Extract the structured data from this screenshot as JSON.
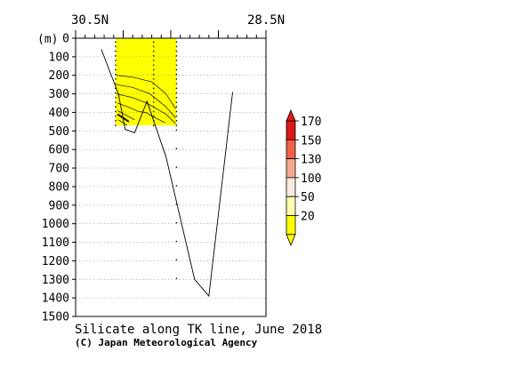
{
  "chart_data": {
    "type": "contour-section",
    "title": "Silicate along TK line, June 2018",
    "credit": "(C) Japan Meteorological Agency",
    "x_axis": {
      "left_label": "30.5N",
      "right_label": "28.5N",
      "lat_range": [
        30.5,
        28.5
      ],
      "station_lats": [
        30.08,
        29.68,
        29.44
      ]
    },
    "y_axis": {
      "unit_label": "(m)",
      "ticks": [
        0,
        100,
        200,
        300,
        400,
        500,
        600,
        700,
        800,
        900,
        1000,
        1100,
        1200,
        1300,
        1400,
        1500
      ],
      "ylim": [
        0,
        1500
      ],
      "grid": true
    },
    "bottom_profile": [
      {
        "lat": 30.23,
        "depth": 60
      },
      {
        "lat": 30.05,
        "depth": 300
      },
      {
        "lat": 29.98,
        "depth": 490
      },
      {
        "lat": 29.88,
        "depth": 510
      },
      {
        "lat": 29.75,
        "depth": 340
      },
      {
        "lat": 29.55,
        "depth": 640
      },
      {
        "lat": 29.25,
        "depth": 1300
      },
      {
        "lat": 29.1,
        "depth": 1390
      },
      {
        "lat": 28.85,
        "depth": 290
      }
    ],
    "filled_region": {
      "lat_range": [
        30.08,
        29.44
      ],
      "depth_max": 470,
      "color": "#ffff00"
    },
    "contours": [
      {
        "points": [
          [
            30.07,
            200
          ],
          [
            29.9,
            210
          ],
          [
            29.7,
            235
          ],
          [
            29.55,
            300
          ],
          [
            29.45,
            380
          ]
        ]
      },
      {
        "points": [
          [
            30.07,
            250
          ],
          [
            29.9,
            265
          ],
          [
            29.72,
            300
          ],
          [
            29.55,
            370
          ],
          [
            29.45,
            430
          ]
        ]
      },
      {
        "points": [
          [
            30.07,
            300
          ],
          [
            29.9,
            320
          ],
          [
            29.75,
            350
          ],
          [
            29.55,
            410
          ],
          [
            29.45,
            460
          ]
        ]
      },
      {
        "points": [
          [
            30.06,
            350
          ],
          [
            29.95,
            370
          ],
          [
            29.84,
            395
          ],
          [
            29.76,
            400
          ],
          [
            29.7,
            420
          ],
          [
            29.56,
            455
          ]
        ]
      },
      {
        "points": [
          [
            30.06,
            390
          ],
          [
            29.95,
            420
          ],
          [
            29.88,
            440
          ]
        ]
      },
      {
        "points": [
          [
            30.06,
            410
          ],
          [
            29.94,
            450
          ]
        ],
        "bold": true
      },
      {
        "points": [
          [
            30.05,
            440
          ],
          [
            29.96,
            470
          ]
        ]
      }
    ],
    "legend": {
      "values": [
        "170",
        "150",
        "130",
        "100",
        "50",
        "20"
      ],
      "colors": [
        "#dd1818",
        "#f06048",
        "#f4a890",
        "#fbe8e0",
        "#ffffb0",
        "#ffff00"
      ]
    }
  }
}
